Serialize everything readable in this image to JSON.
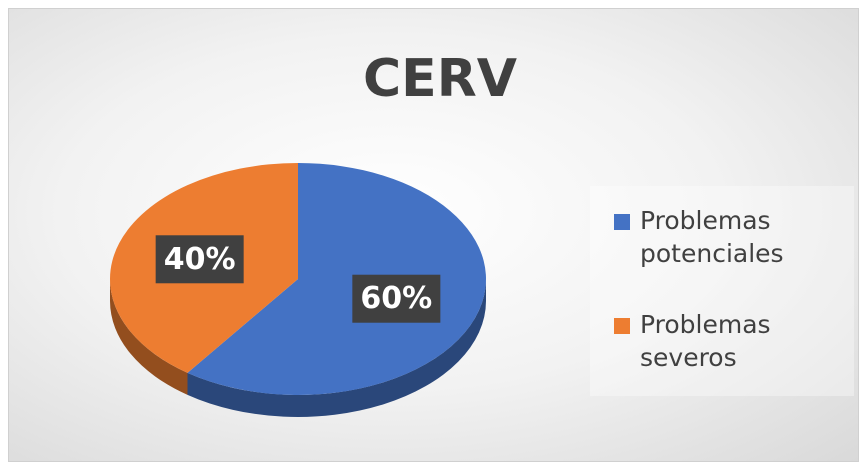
{
  "chart_data": {
    "type": "pie",
    "title": "CERV",
    "categories": [
      "Problemas potenciales",
      "Problemas severos"
    ],
    "values": [
      60,
      40
    ],
    "value_labels": [
      "60%",
      "40%"
    ],
    "colors": [
      "#4472c4",
      "#ed7d31"
    ],
    "legend": "right"
  }
}
